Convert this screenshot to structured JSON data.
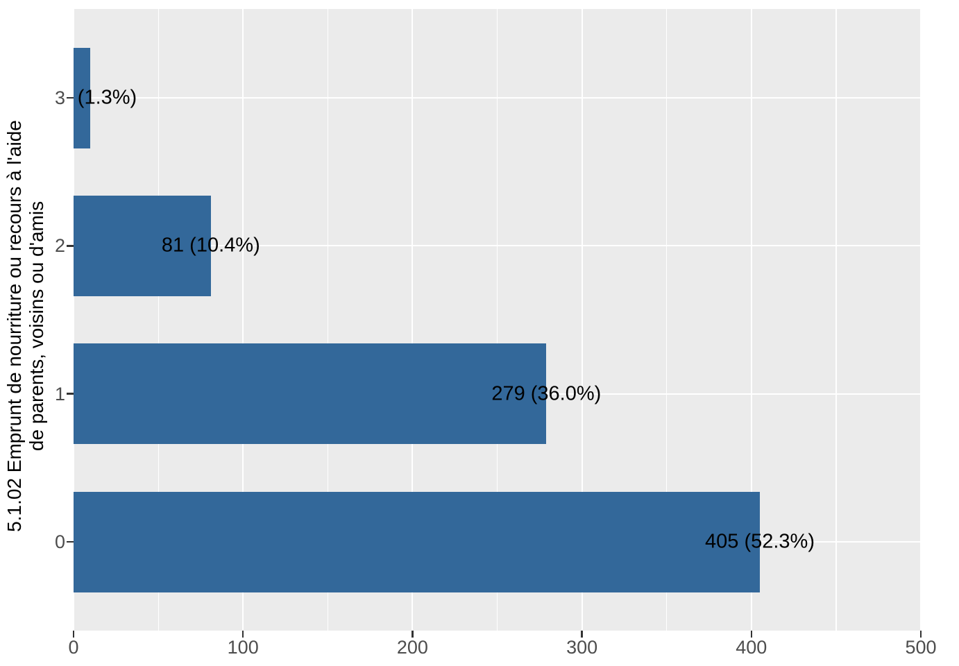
{
  "chart_data": {
    "type": "bar",
    "orientation": "horizontal",
    "title": "",
    "xlabel": "",
    "ylabel_lines": [
      "5.1.02 Emprunt de nourriture ou recours à l'aide",
      "de parents, voisins ou d'amis"
    ],
    "categories": [
      "0",
      "1",
      "2",
      "3"
    ],
    "values": [
      405,
      279,
      81,
      10
    ],
    "bar_labels": [
      "405 (52.3%)",
      "279 (36.0%)",
      "81 (10.4%)",
      "(1.3%)"
    ],
    "xlim": [
      0,
      500
    ],
    "x_major_ticks": [
      0,
      100,
      200,
      300,
      400,
      500
    ],
    "x_minor_ticks": [
      50,
      150,
      250,
      350,
      450
    ],
    "grid": true,
    "legend": "none",
    "colors": {
      "bar": "#33689A",
      "panel_background": "#EBEBEB",
      "gridline": "#FFFFFF",
      "tick_text": "#4D4D4D",
      "tick_mark": "#333333",
      "label_text": "#000000"
    }
  }
}
